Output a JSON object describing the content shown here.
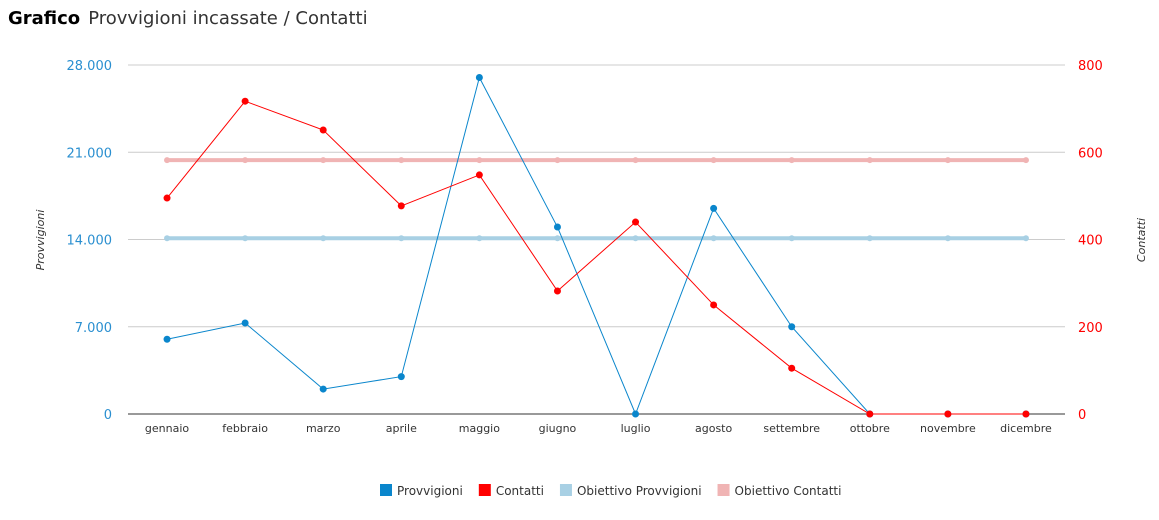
{
  "header": {
    "label": "Grafico",
    "title": "Provvigioni incassate / Contatti"
  },
  "chart_data": {
    "type": "line",
    "title": "Provvigioni incassate / Contatti",
    "categories": [
      "gennaio",
      "febbraio",
      "marzo",
      "aprile",
      "maggio",
      "giugno",
      "luglio",
      "agosto",
      "settembre",
      "ottobre",
      "novembre",
      "dicembre"
    ],
    "y_left": {
      "label": "Provvigioni",
      "range": [
        0,
        28000
      ],
      "ticks": [
        0,
        7000,
        14000,
        21000,
        28000
      ],
      "tick_labels": [
        "0",
        "7.000",
        "14.000",
        "21.000",
        "28.000"
      ],
      "color": "#2a8fd0"
    },
    "y_right": {
      "label": "Contatti",
      "range": [
        0,
        800
      ],
      "ticks": [
        0,
        200,
        400,
        600,
        800
      ],
      "tick_labels": [
        "0",
        "200",
        "400",
        "600",
        "800"
      ],
      "color": "#ff0000"
    },
    "grid": true,
    "legend_position": "bottom",
    "series": [
      {
        "name": "Provvigioni",
        "axis": "left",
        "color": "#0a86cc",
        "width": 1,
        "values": [
          6000,
          7300,
          2000,
          3000,
          27000,
          15000,
          0,
          16500,
          7000,
          0,
          0,
          0
        ]
      },
      {
        "name": "Contatti",
        "axis": "right",
        "color": "#ff0000",
        "width": 1,
        "values": [
          495,
          717,
          651,
          477,
          548,
          282,
          440,
          250,
          105,
          0,
          0,
          0
        ]
      },
      {
        "name": "Obiettivo Provvigioni",
        "axis": "left",
        "color": "#a8d0e4",
        "width": 4,
        "values": [
          14100,
          14100,
          14100,
          14100,
          14100,
          14100,
          14100,
          14100,
          14100,
          14100,
          14100,
          14100
        ]
      },
      {
        "name": "Obiettivo Contatti",
        "axis": "right",
        "color": "#f0b4b4",
        "width": 4,
        "values": [
          582,
          582,
          582,
          582,
          582,
          582,
          582,
          582,
          582,
          582,
          582,
          582
        ]
      }
    ]
  }
}
